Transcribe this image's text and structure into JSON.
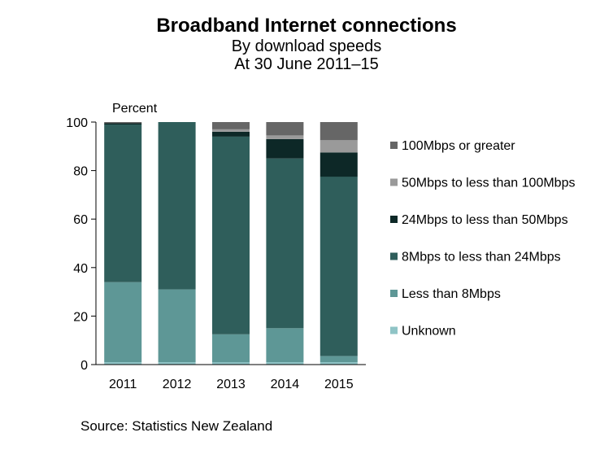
{
  "title": "Broadband Internet connections",
  "subtitle": "By download  speeds",
  "subtitle2": "At 30 June 2011–15",
  "source": "Source: Statistics New Zealand",
  "colors": {
    "unknown": "#8fc4c6",
    "lt8": "#5e9796",
    "m8_24": "#2f5e5b",
    "m24_50": "#0d2827",
    "m50_100": "#9a9a9a",
    "m100": "#666666"
  },
  "chart_data": {
    "type": "bar",
    "stacked": true,
    "categories": [
      "2011",
      "2012",
      "2013",
      "2014",
      "2015"
    ],
    "ylabel": "Percent",
    "ylim": [
      0,
      100
    ],
    "yticks": [
      0,
      20,
      40,
      60,
      80,
      100
    ],
    "grid": false,
    "legend_position": "right",
    "series": [
      {
        "name": "Unknown",
        "color": "#8fc4c6",
        "values": [
          1,
          1,
          1,
          1,
          1
        ]
      },
      {
        "name": "Less than 8Mbps",
        "color": "#5e9796",
        "values": [
          33,
          30,
          11.5,
          14,
          2.5
        ]
      },
      {
        "name": "8Mbps to less than 24Mbps",
        "color": "#2f5e5b",
        "values": [
          65,
          69,
          81.5,
          70,
          74
        ]
      },
      {
        "name": "24Mbps to less than 50Mbps",
        "color": "#0d2827",
        "values": [
          0.5,
          0,
          2,
          8,
          10
        ]
      },
      {
        "name": "50Mbps to less than 100Mbps",
        "color": "#9a9a9a",
        "values": [
          0,
          0,
          1,
          1.5,
          5
        ]
      },
      {
        "name": "100Mbps or greater",
        "color": "#666666",
        "values": [
          0.5,
          0,
          3,
          5.5,
          7.5
        ]
      }
    ],
    "legend_order": [
      "100Mbps or greater",
      "50Mbps to less than 100Mbps",
      "24Mbps to less than 50Mbps",
      "8Mbps to less than 24Mbps",
      "Less than 8Mbps",
      "Unknown"
    ]
  }
}
